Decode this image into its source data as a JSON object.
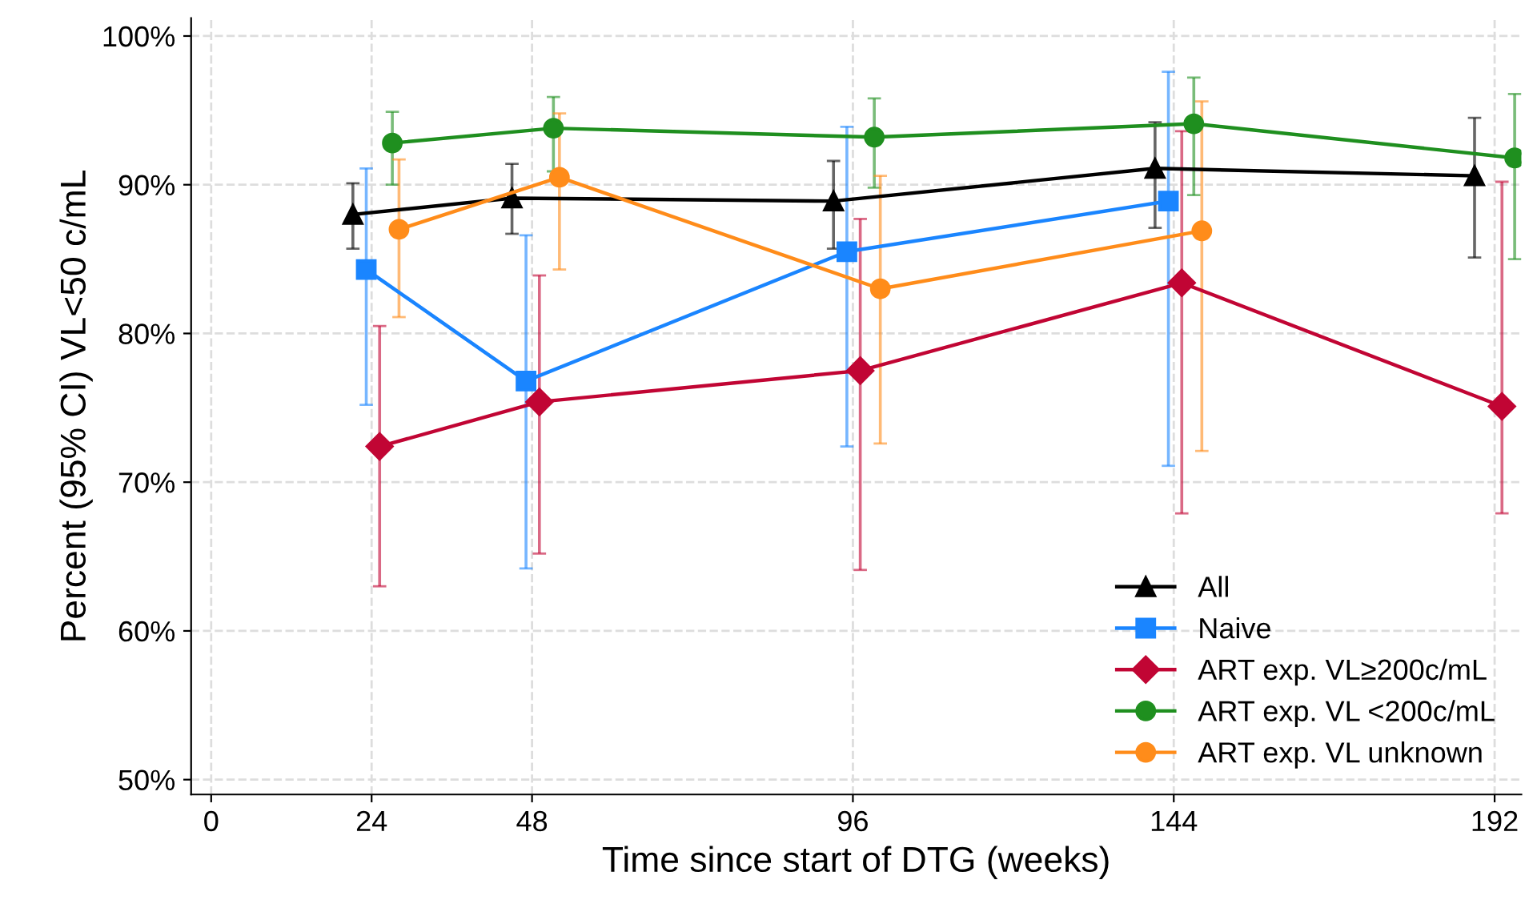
{
  "chart_data": {
    "type": "line",
    "xlabel": "Time since start of DTG (weeks)",
    "ylabel": "Percent (95% CI) VL<50 c/mL",
    "xlim": [
      -3,
      196
    ],
    "xticks": [
      0,
      24,
      48,
      96,
      144,
      192
    ],
    "ylim": [
      49,
      101.2
    ],
    "yticks": [
      {
        "value": 50,
        "label": "50%"
      },
      {
        "value": 60,
        "label": "60%"
      },
      {
        "value": 70,
        "label": "70%"
      },
      {
        "value": 80,
        "label": "80%"
      },
      {
        "value": 90,
        "label": "90%"
      },
      {
        "value": 100,
        "label": "100%"
      }
    ],
    "grid": true,
    "legend": "bottom right",
    "line_style": "solid",
    "series": [
      {
        "name": "All",
        "color": "#000000",
        "marker": "triangle",
        "x": [
          21.2,
          45,
          93.1,
          141.2,
          189
        ],
        "values": [
          88.0,
          89.1,
          88.9,
          91.1,
          90.6
        ],
        "errors": [
          [
            85.7,
            90.1
          ],
          [
            86.7,
            91.4
          ],
          [
            85.7,
            91.6
          ],
          [
            87.1,
            94.2
          ],
          [
            85.1,
            94.5
          ]
        ]
      },
      {
        "name": "Naive",
        "color": "#1a85ff",
        "marker": "square",
        "x": [
          23.2,
          47.1,
          95.1,
          143.2
        ],
        "values": [
          84.3,
          76.8,
          85.5,
          88.9
        ],
        "errors": [
          [
            75.2,
            91.1
          ],
          [
            64.2,
            86.6
          ],
          [
            72.4,
            93.9
          ],
          [
            71.1,
            97.6
          ]
        ]
      },
      {
        "name": "ART exp. VL≥200c/mL",
        "color": "#c10534",
        "marker": "diamond",
        "x": [
          25.2,
          49.1,
          97.1,
          145.2,
          193.1
        ],
        "values": [
          72.4,
          75.4,
          77.5,
          83.4,
          75.1
        ],
        "errors": [
          [
            63.0,
            80.5
          ],
          [
            65.2,
            83.9
          ],
          [
            64.1,
            87.7
          ],
          [
            67.9,
            93.6
          ],
          [
            67.9,
            90.2
          ]
        ]
      },
      {
        "name": "ART exp. VL <200c/mL",
        "color": "#1f8f1f",
        "marker": "circle",
        "x": [
          27.1,
          51.2,
          99.2,
          147,
          195
        ],
        "values": [
          92.8,
          93.8,
          93.2,
          94.1,
          91.8
        ],
        "errors": [
          [
            90.0,
            94.9
          ],
          [
            90.9,
            95.9
          ],
          [
            89.8,
            95.8
          ],
          [
            89.3,
            97.2
          ],
          [
            85.0,
            96.1
          ]
        ]
      },
      {
        "name": "ART exp. VL unknown",
        "color": "#ff8c1a",
        "marker": "circle",
        "x": [
          28.1,
          52.1,
          100.1,
          148.2
        ],
        "values": [
          87.0,
          90.5,
          83.0,
          86.9
        ],
        "errors": [
          [
            81.1,
            91.7
          ],
          [
            84.3,
            94.8
          ],
          [
            72.6,
            90.6
          ],
          [
            72.1,
            95.6
          ]
        ]
      }
    ]
  }
}
